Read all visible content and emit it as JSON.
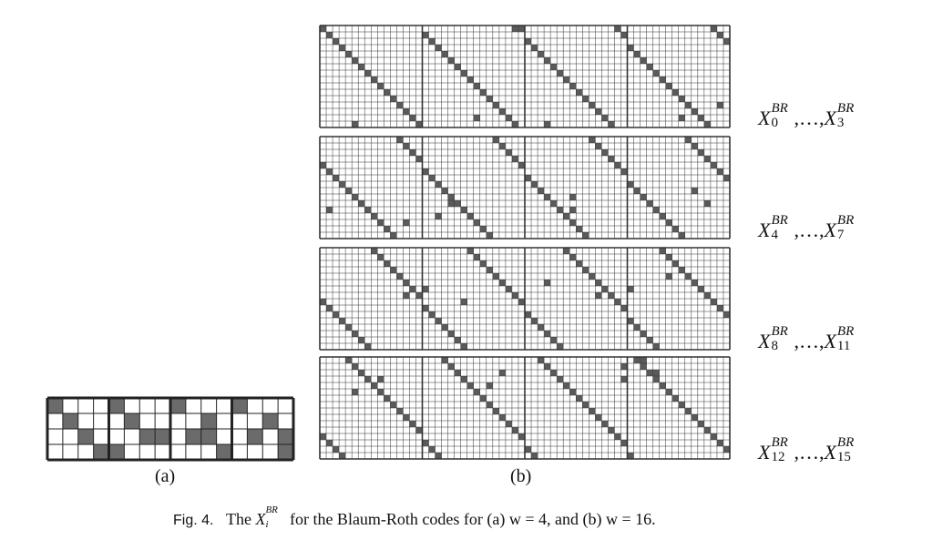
{
  "figure": {
    "panel_a_label": "(a)",
    "panel_b_label": "(b)",
    "caption": {
      "fig_no": "Fig. 4.",
      "text_before": "The",
      "symbol": "X",
      "symbol_sup": "BR",
      "symbol_sub": "i",
      "text_after": "for the Blaum-Roth codes for (a) w = 4, and (b) w = 16."
    },
    "row_labels": [
      {
        "start_sub": "0",
        "end_sub": "3",
        "sup": "BR",
        "ellipsis": ",…,"
      },
      {
        "start_sub": "4",
        "end_sub": "7",
        "sup": "BR",
        "ellipsis": ",…,"
      },
      {
        "start_sub": "8",
        "end_sub": "11",
        "sup": "BR",
        "ellipsis": ",…,"
      },
      {
        "start_sub": "12",
        "end_sub": "15",
        "sup": "BR",
        "ellipsis": ",…,"
      }
    ],
    "symbol": "X",
    "colors": {
      "cell_on": "#5a5a5a",
      "grid": "#222222",
      "background": "#ffffff"
    },
    "panel_a": {
      "rows": 4,
      "blocks": 4,
      "block_size": 4,
      "filled": [
        [
          0,
          0
        ],
        [
          1,
          1
        ],
        [
          2,
          2
        ],
        [
          3,
          3
        ],
        [
          0,
          4
        ],
        [
          1,
          5
        ],
        [
          2,
          6
        ],
        [
          3,
          4
        ],
        [
          2,
          7
        ],
        [
          0,
          8
        ],
        [
          1,
          10
        ],
        [
          2,
          9
        ],
        [
          3,
          11
        ],
        [
          2,
          10
        ],
        [
          0,
          12
        ],
        [
          1,
          14
        ],
        [
          2,
          13
        ],
        [
          3,
          15
        ],
        [
          2,
          15
        ]
      ]
    },
    "panel_b": {
      "blocks_per_row": 4,
      "block_size": 16,
      "matrices": 4
    }
  }
}
